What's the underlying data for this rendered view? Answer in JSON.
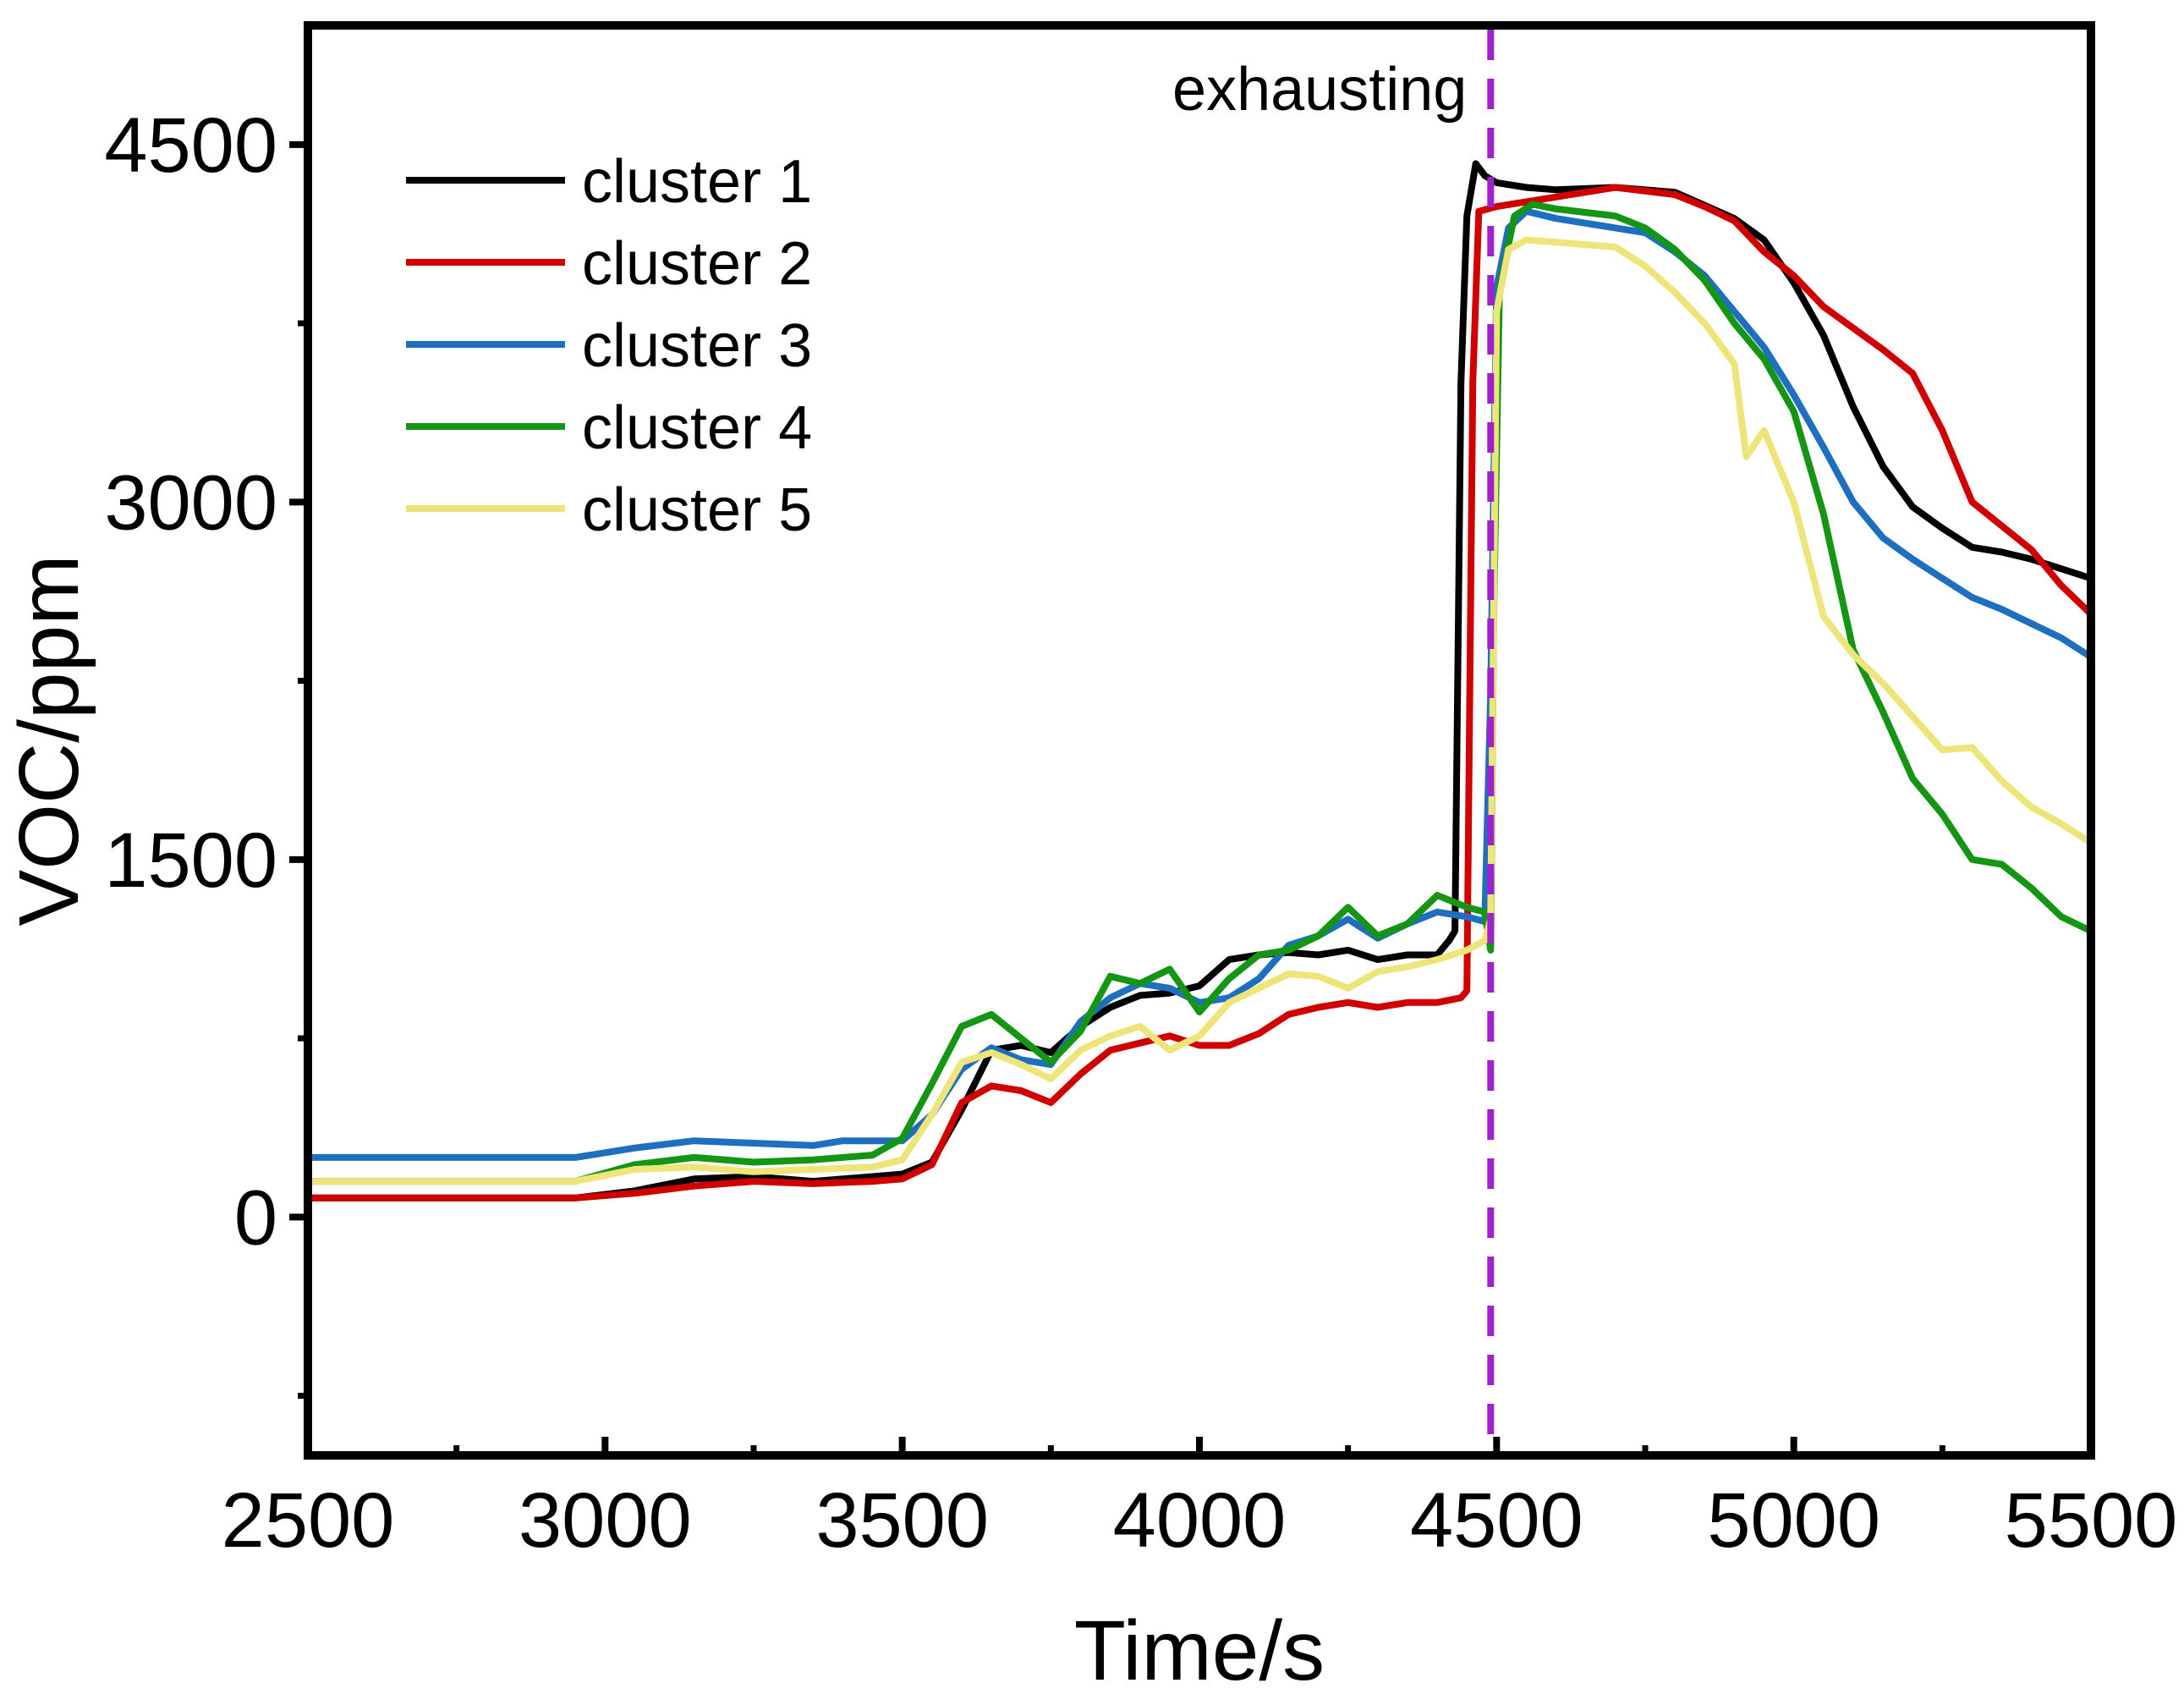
{
  "chart_data": {
    "type": "line",
    "title": "",
    "xlabel": "Time/s",
    "ylabel": "VOC/ppm",
    "xlim": [
      2500,
      5500
    ],
    "ylim": [
      -1000,
      5000
    ],
    "xticks": [
      2500,
      3000,
      3500,
      4000,
      4500,
      5000,
      5500
    ],
    "xtick_labels": [
      "2500",
      "3000",
      "3500",
      "4000",
      "4500",
      "5000",
      "5500"
    ],
    "yticks": [
      0,
      1500,
      3000,
      4500
    ],
    "ytick_labels": [
      "0",
      "1500",
      "3000",
      "4500"
    ],
    "x_minor_ticks": [
      2750,
      3250,
      3750,
      4250,
      4750,
      5250
    ],
    "y_minor_ticks": [
      -750,
      750,
      2250,
      3750
    ],
    "grid": false,
    "legend_position": "top-left",
    "annotations": [
      {
        "text": "exhausting",
        "x": 4490,
        "color": "#a020d0",
        "style": "dashed vertical line"
      }
    ],
    "series": [
      {
        "name": "cluster 1",
        "color": "#000000",
        "points": [
          [
            2500,
            80
          ],
          [
            2950,
            80
          ],
          [
            3050,
            110
          ],
          [
            3150,
            160
          ],
          [
            3250,
            170
          ],
          [
            3350,
            150
          ],
          [
            3450,
            170
          ],
          [
            3500,
            180
          ],
          [
            3550,
            230
          ],
          [
            3600,
            450
          ],
          [
            3650,
            700
          ],
          [
            3700,
            720
          ],
          [
            3750,
            690
          ],
          [
            3800,
            800
          ],
          [
            3850,
            880
          ],
          [
            3900,
            930
          ],
          [
            3950,
            940
          ],
          [
            4000,
            970
          ],
          [
            4050,
            1080
          ],
          [
            4100,
            1100
          ],
          [
            4150,
            1110
          ],
          [
            4200,
            1100
          ],
          [
            4250,
            1120
          ],
          [
            4300,
            1080
          ],
          [
            4350,
            1100
          ],
          [
            4400,
            1100
          ],
          [
            4420,
            1160
          ],
          [
            4430,
            1200
          ],
          [
            4440,
            3500
          ],
          [
            4450,
            4200
          ],
          [
            4465,
            4420
          ],
          [
            4480,
            4370
          ],
          [
            4500,
            4340
          ],
          [
            4550,
            4320
          ],
          [
            4600,
            4310
          ],
          [
            4700,
            4320
          ],
          [
            4800,
            4300
          ],
          [
            4900,
            4190
          ],
          [
            4950,
            4100
          ],
          [
            5000,
            3920
          ],
          [
            5050,
            3700
          ],
          [
            5100,
            3400
          ],
          [
            5150,
            3150
          ],
          [
            5200,
            2980
          ],
          [
            5250,
            2890
          ],
          [
            5300,
            2810
          ],
          [
            5350,
            2790
          ],
          [
            5400,
            2760
          ],
          [
            5450,
            2720
          ],
          [
            5500,
            2680
          ]
        ]
      },
      {
        "name": "cluster 2",
        "color": "#d00000",
        "points": [
          [
            2500,
            80
          ],
          [
            2950,
            80
          ],
          [
            3050,
            100
          ],
          [
            3150,
            130
          ],
          [
            3250,
            150
          ],
          [
            3350,
            140
          ],
          [
            3450,
            150
          ],
          [
            3500,
            160
          ],
          [
            3550,
            220
          ],
          [
            3600,
            480
          ],
          [
            3650,
            550
          ],
          [
            3700,
            530
          ],
          [
            3750,
            480
          ],
          [
            3800,
            600
          ],
          [
            3850,
            700
          ],
          [
            3900,
            730
          ],
          [
            3950,
            760
          ],
          [
            4000,
            720
          ],
          [
            4050,
            720
          ],
          [
            4100,
            770
          ],
          [
            4150,
            850
          ],
          [
            4200,
            880
          ],
          [
            4250,
            900
          ],
          [
            4300,
            880
          ],
          [
            4350,
            900
          ],
          [
            4400,
            900
          ],
          [
            4440,
            920
          ],
          [
            4450,
            950
          ],
          [
            4460,
            3500
          ],
          [
            4470,
            4220
          ],
          [
            4500,
            4240
          ],
          [
            4550,
            4260
          ],
          [
            4600,
            4280
          ],
          [
            4700,
            4320
          ],
          [
            4800,
            4290
          ],
          [
            4850,
            4240
          ],
          [
            4900,
            4180
          ],
          [
            4950,
            4050
          ],
          [
            5000,
            3950
          ],
          [
            5050,
            3820
          ],
          [
            5100,
            3730
          ],
          [
            5150,
            3640
          ],
          [
            5200,
            3540
          ],
          [
            5250,
            3300
          ],
          [
            5300,
            3000
          ],
          [
            5350,
            2900
          ],
          [
            5400,
            2800
          ],
          [
            5450,
            2650
          ],
          [
            5500,
            2530
          ]
        ]
      },
      {
        "name": "cluster 3",
        "color": "#1f6fc0",
        "points": [
          [
            2500,
            250
          ],
          [
            2950,
            250
          ],
          [
            3050,
            290
          ],
          [
            3150,
            320
          ],
          [
            3250,
            310
          ],
          [
            3350,
            300
          ],
          [
            3400,
            320
          ],
          [
            3500,
            320
          ],
          [
            3550,
            430
          ],
          [
            3600,
            620
          ],
          [
            3650,
            710
          ],
          [
            3700,
            660
          ],
          [
            3750,
            640
          ],
          [
            3800,
            820
          ],
          [
            3850,
            920
          ],
          [
            3900,
            980
          ],
          [
            3950,
            960
          ],
          [
            4000,
            900
          ],
          [
            4050,
            920
          ],
          [
            4100,
            1000
          ],
          [
            4150,
            1140
          ],
          [
            4200,
            1180
          ],
          [
            4250,
            1250
          ],
          [
            4300,
            1170
          ],
          [
            4350,
            1230
          ],
          [
            4400,
            1280
          ],
          [
            4450,
            1260
          ],
          [
            4480,
            1240
          ],
          [
            4490,
            2200
          ],
          [
            4500,
            3900
          ],
          [
            4520,
            4150
          ],
          [
            4550,
            4220
          ],
          [
            4600,
            4190
          ],
          [
            4700,
            4150
          ],
          [
            4750,
            4130
          ],
          [
            4800,
            4050
          ],
          [
            4850,
            3950
          ],
          [
            4900,
            3800
          ],
          [
            4950,
            3650
          ],
          [
            5000,
            3450
          ],
          [
            5050,
            3230
          ],
          [
            5100,
            3000
          ],
          [
            5150,
            2850
          ],
          [
            5200,
            2760
          ],
          [
            5250,
            2680
          ],
          [
            5300,
            2600
          ],
          [
            5350,
            2550
          ],
          [
            5400,
            2490
          ],
          [
            5450,
            2430
          ],
          [
            5500,
            2350
          ]
        ]
      },
      {
        "name": "cluster 4",
        "color": "#149614",
        "points": [
          [
            2500,
            150
          ],
          [
            2950,
            150
          ],
          [
            3050,
            220
          ],
          [
            3150,
            250
          ],
          [
            3250,
            230
          ],
          [
            3350,
            240
          ],
          [
            3450,
            260
          ],
          [
            3500,
            330
          ],
          [
            3550,
            560
          ],
          [
            3600,
            800
          ],
          [
            3650,
            850
          ],
          [
            3700,
            750
          ],
          [
            3750,
            650
          ],
          [
            3800,
            780
          ],
          [
            3850,
            1010
          ],
          [
            3900,
            980
          ],
          [
            3950,
            1040
          ],
          [
            4000,
            860
          ],
          [
            4050,
            1000
          ],
          [
            4100,
            1100
          ],
          [
            4150,
            1120
          ],
          [
            4200,
            1180
          ],
          [
            4250,
            1300
          ],
          [
            4300,
            1180
          ],
          [
            4350,
            1230
          ],
          [
            4400,
            1350
          ],
          [
            4450,
            1300
          ],
          [
            4480,
            1280
          ],
          [
            4490,
            1120
          ],
          [
            4495,
            2500
          ],
          [
            4505,
            3900
          ],
          [
            4530,
            4200
          ],
          [
            4560,
            4250
          ],
          [
            4600,
            4230
          ],
          [
            4700,
            4200
          ],
          [
            4750,
            4150
          ],
          [
            4800,
            4060
          ],
          [
            4850,
            3930
          ],
          [
            4900,
            3750
          ],
          [
            4950,
            3600
          ],
          [
            5000,
            3380
          ],
          [
            5050,
            2950
          ],
          [
            5100,
            2380
          ],
          [
            5150,
            2120
          ],
          [
            5200,
            1840
          ],
          [
            5250,
            1690
          ],
          [
            5300,
            1500
          ],
          [
            5350,
            1480
          ],
          [
            5400,
            1380
          ],
          [
            5450,
            1260
          ],
          [
            5500,
            1200
          ]
        ]
      },
      {
        "name": "cluster 5",
        "color": "#eee57a",
        "points": [
          [
            2500,
            150
          ],
          [
            2950,
            150
          ],
          [
            3050,
            200
          ],
          [
            3150,
            210
          ],
          [
            3250,
            190
          ],
          [
            3350,
            200
          ],
          [
            3450,
            210
          ],
          [
            3500,
            240
          ],
          [
            3550,
            430
          ],
          [
            3600,
            650
          ],
          [
            3650,
            690
          ],
          [
            3700,
            640
          ],
          [
            3750,
            580
          ],
          [
            3800,
            700
          ],
          [
            3850,
            760
          ],
          [
            3900,
            800
          ],
          [
            3950,
            700
          ],
          [
            4000,
            760
          ],
          [
            4050,
            900
          ],
          [
            4100,
            960
          ],
          [
            4150,
            1020
          ],
          [
            4200,
            1010
          ],
          [
            4250,
            960
          ],
          [
            4300,
            1030
          ],
          [
            4350,
            1050
          ],
          [
            4400,
            1080
          ],
          [
            4450,
            1120
          ],
          [
            4480,
            1160
          ],
          [
            4490,
            1250
          ],
          [
            4500,
            3800
          ],
          [
            4520,
            4060
          ],
          [
            4550,
            4100
          ],
          [
            4600,
            4090
          ],
          [
            4700,
            4070
          ],
          [
            4750,
            3990
          ],
          [
            4800,
            3880
          ],
          [
            4850,
            3750
          ],
          [
            4900,
            3580
          ],
          [
            4920,
            3190
          ],
          [
            4950,
            3300
          ],
          [
            5000,
            3000
          ],
          [
            5050,
            2520
          ],
          [
            5100,
            2360
          ],
          [
            5150,
            2240
          ],
          [
            5200,
            2100
          ],
          [
            5250,
            1960
          ],
          [
            5300,
            1970
          ],
          [
            5350,
            1830
          ],
          [
            5400,
            1720
          ],
          [
            5450,
            1650
          ],
          [
            5500,
            1570
          ]
        ]
      }
    ]
  }
}
